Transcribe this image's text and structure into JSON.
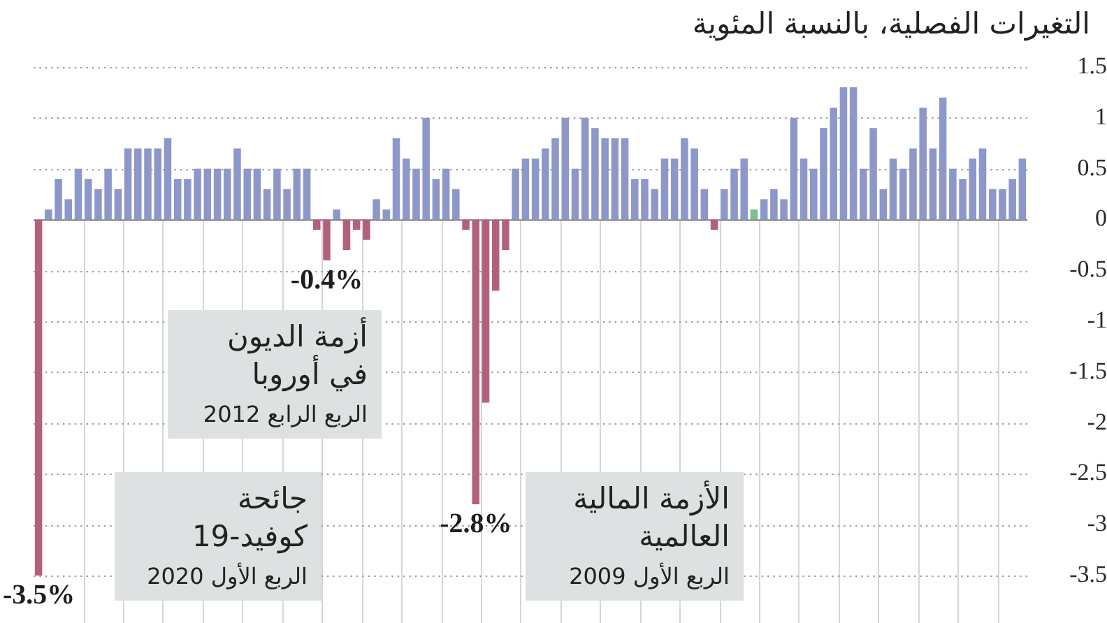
{
  "chart_data": {
    "type": "bar",
    "title": "التغيرات الفصلية، بالنسبة المئوية",
    "categories": [
      null,
      null,
      null,
      null,
      null,
      null,
      null,
      null,
      null,
      null,
      null,
      null,
      null,
      null,
      null,
      null,
      null,
      null,
      null,
      null,
      null,
      null,
      null,
      null,
      null,
      null,
      null,
      null,
      null,
      null,
      null,
      null,
      null,
      null,
      null,
      null,
      null,
      null,
      null,
      null,
      null,
      null,
      null,
      null,
      null,
      null,
      null,
      null,
      null,
      null,
      null,
      null,
      null,
      null,
      null,
      null,
      null,
      null,
      null,
      null,
      null,
      null,
      null,
      null,
      null,
      null,
      null,
      null,
      null,
      null,
      null,
      null,
      null,
      null,
      null,
      null,
      null,
      null,
      null,
      null,
      null,
      null,
      null,
      null,
      null,
      null,
      null,
      null,
      null,
      null,
      null,
      null,
      null,
      null,
      null,
      null,
      null,
      null,
      null,
      null
    ],
    "values": [
      -3.5,
      0.1,
      0.4,
      0.2,
      0.5,
      0.4,
      0.3,
      0.5,
      0.3,
      0.7,
      0.7,
      0.7,
      0.7,
      0.8,
      0.4,
      0.4,
      0.5,
      0.5,
      0.5,
      0.5,
      0.7,
      0.5,
      0.5,
      0.3,
      0.5,
      0.3,
      0.5,
      0.5,
      -0.1,
      -0.4,
      0.1,
      -0.3,
      -0.1,
      -0.2,
      0.2,
      0.1,
      0.8,
      0.6,
      0.5,
      1,
      0.4,
      0.5,
      0.3,
      -0.1,
      -2.8,
      -1.8,
      -0.7,
      -0.3,
      0.5,
      0.6,
      0.6,
      0.7,
      0.8,
      1,
      0.5,
      1,
      0.9,
      0.8,
      0.8,
      0.8,
      0.4,
      0.4,
      0.3,
      0.6,
      0.6,
      0.8,
      0.7,
      0.3,
      -0.1,
      0.3,
      0.5,
      0.6,
      0.1,
      0.2,
      0.3,
      0.2,
      1,
      0.6,
      0.5,
      0.9,
      1.1,
      1.3,
      1.3,
      0.5,
      0.9,
      0.3,
      0.6,
      0.5,
      0.7,
      1.1,
      0.7,
      1.2,
      0.5,
      0.4,
      0.6,
      0.7,
      0.3,
      0.3,
      0.4,
      0.6
    ],
    "colors": [
      "#b3607f",
      "#8e97c9",
      "#8e97c9",
      "#8e97c9",
      "#8e97c9",
      "#8e97c9",
      "#8e97c9",
      "#8e97c9",
      "#8e97c9",
      "#8e97c9",
      "#8e97c9",
      "#8e97c9",
      "#8e97c9",
      "#8e97c9",
      "#8e97c9",
      "#8e97c9",
      "#8e97c9",
      "#8e97c9",
      "#8e97c9",
      "#8e97c9",
      "#8e97c9",
      "#8e97c9",
      "#8e97c9",
      "#8e97c9",
      "#8e97c9",
      "#8e97c9",
      "#8e97c9",
      "#8e97c9",
      "#b3607f",
      "#b3607f",
      "#8e97c9",
      "#b3607f",
      "#b3607f",
      "#b3607f",
      "#8e97c9",
      "#8e97c9",
      "#8e97c9",
      "#8e97c9",
      "#8e97c9",
      "#8e97c9",
      "#8e97c9",
      "#8e97c9",
      "#8e97c9",
      "#b3607f",
      "#b3607f",
      "#b3607f",
      "#b3607f",
      "#b3607f",
      "#8e97c9",
      "#8e97c9",
      "#8e97c9",
      "#8e97c9",
      "#8e97c9",
      "#8e97c9",
      "#8e97c9",
      "#8e97c9",
      "#8e97c9",
      "#8e97c9",
      "#8e97c9",
      "#8e97c9",
      "#8e97c9",
      "#8e97c9",
      "#8e97c9",
      "#8e97c9",
      "#8e97c9",
      "#8e97c9",
      "#8e97c9",
      "#8e97c9",
      "#b3607f",
      "#8e97c9",
      "#8e97c9",
      "#8e97c9",
      "#79c08e",
      "#8e97c9",
      "#8e97c9",
      "#8e97c9",
      "#8e97c9",
      "#8e97c9",
      "#8e97c9",
      "#8e97c9",
      "#8e97c9",
      "#8e97c9",
      "#8e97c9",
      "#8e97c9",
      "#8e97c9",
      "#8e97c9",
      "#8e97c9",
      "#8e97c9",
      "#8e97c9",
      "#8e97c9",
      "#8e97c9",
      "#8e97c9",
      "#8e97c9",
      "#8e97c9",
      "#8e97c9",
      "#8e97c9",
      "#8e97c9",
      "#8e97c9",
      "#8e97c9",
      "#8e97c9"
    ],
    "value_labels": [
      "-3.5%",
      null,
      null,
      null,
      null,
      null,
      null,
      null,
      null,
      null,
      null,
      null,
      null,
      null,
      null,
      null,
      null,
      null,
      null,
      null,
      null,
      null,
      null,
      null,
      null,
      null,
      null,
      null,
      null,
      "-0.4%",
      null,
      null,
      null,
      null,
      null,
      null,
      null,
      null,
      null,
      null,
      null,
      null,
      null,
      null,
      "-2.8%",
      null,
      null,
      null,
      null,
      null,
      null,
      null,
      null,
      null,
      null,
      null,
      null,
      null,
      null,
      null,
      null,
      null,
      null,
      null,
      null,
      null,
      null,
      null,
      null,
      null,
      null,
      null,
      null,
      null,
      null,
      null,
      null,
      null,
      null,
      null,
      null,
      null,
      null,
      null,
      null,
      null,
      null,
      null,
      null,
      null,
      null,
      null,
      null,
      null,
      null,
      null,
      null,
      null,
      null,
      null
    ],
    "ylim": [
      -3.5,
      1.5
    ],
    "yticks": [
      1.5,
      1,
      0.5,
      0,
      -0.5,
      -1,
      -1.5,
      -2,
      -2.5,
      -3,
      -3.5
    ],
    "tick_labels": "y",
    "grid": true,
    "annotations": [
      "أزمة الديون في أوروبا",
      "الربع الرابع 2012",
      "جائحة كوفيد-19",
      "الربع الأول 2020",
      "الأزمة المالية العالمية",
      "الربع الأول 2009"
    ]
  }
}
